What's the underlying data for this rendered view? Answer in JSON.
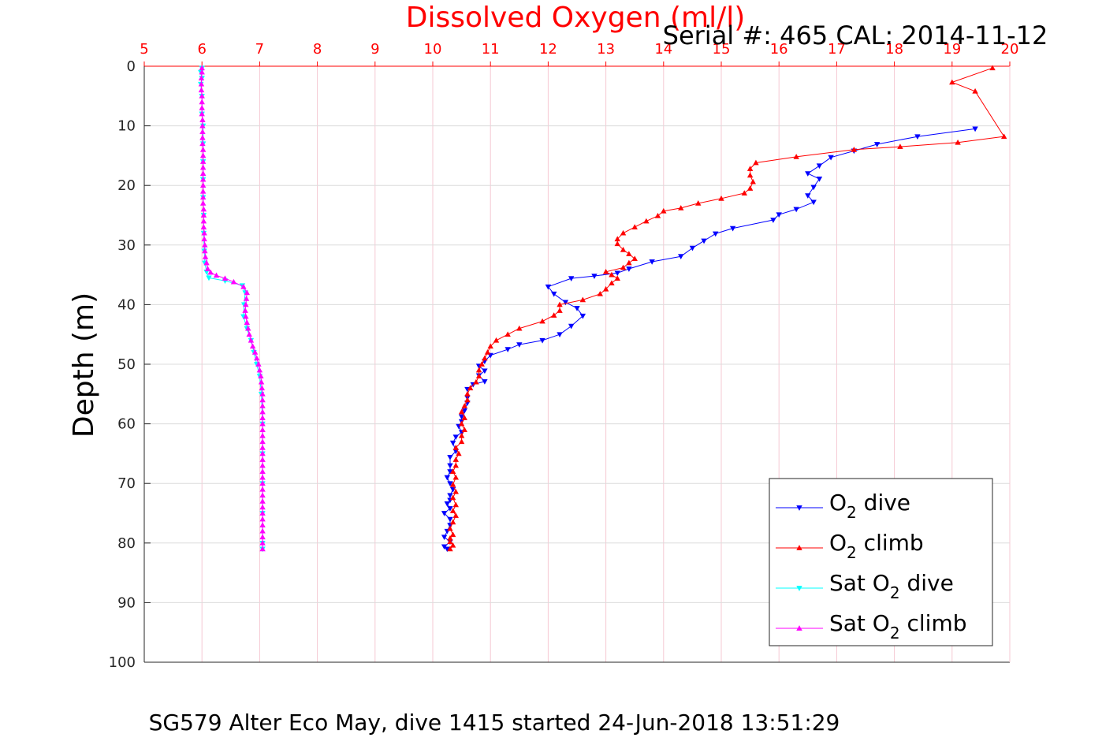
{
  "chart_data": {
    "type": "line",
    "title": "Dissolved Oxygen (ml/l)",
    "title_color": "#ff0000",
    "subtitle": "Serial #: 465  CAL: 2014-11-12",
    "xlabel": "",
    "ylabel": "Depth (m)",
    "caption": "SG579 Alter Eco May, dive 1415 started 24-Jun-2018 13:51:29",
    "xlim": [
      5,
      20
    ],
    "ylim": [
      0,
      100
    ],
    "y_reversed": true,
    "x_axis_position": "top",
    "x_tick_color": "#ff0000",
    "grid": true,
    "legend_position": "bottom-right",
    "xticks": [
      "5",
      "6",
      "7",
      "8",
      "9",
      "10",
      "11",
      "12",
      "13",
      "14",
      "15",
      "16",
      "17",
      "18",
      "19",
      "20"
    ],
    "yticks": [
      "0",
      "10",
      "20",
      "30",
      "40",
      "50",
      "60",
      "70",
      "80",
      "90",
      "100"
    ],
    "series": [
      {
        "name": "dive",
        "legend_pre": "O",
        "legend_sub": "2",
        "legend_post": " dive",
        "color": "#0000ff",
        "marker": "triangle-down",
        "points": [
          [
            19.4,
            10.5
          ],
          [
            18.4,
            11.8
          ],
          [
            17.7,
            13.1
          ],
          [
            17.3,
            14.2
          ],
          [
            16.9,
            15.3
          ],
          [
            16.7,
            16.7
          ],
          [
            16.5,
            18.0
          ],
          [
            16.7,
            18.9
          ],
          [
            16.6,
            20.3
          ],
          [
            16.5,
            21.7
          ],
          [
            16.6,
            22.8
          ],
          [
            16.3,
            24.0
          ],
          [
            16.0,
            24.9
          ],
          [
            15.9,
            25.8
          ],
          [
            15.2,
            27.2
          ],
          [
            14.9,
            28.1
          ],
          [
            14.7,
            29.3
          ],
          [
            14.5,
            30.5
          ],
          [
            14.3,
            31.9
          ],
          [
            13.8,
            32.8
          ],
          [
            13.4,
            34.0
          ],
          [
            13.2,
            34.7
          ],
          [
            12.8,
            35.2
          ],
          [
            12.4,
            35.6
          ],
          [
            12.0,
            37.0
          ],
          [
            12.1,
            38.2
          ],
          [
            12.3,
            39.6
          ],
          [
            12.5,
            40.6
          ],
          [
            12.6,
            41.9
          ],
          [
            12.4,
            43.6
          ],
          [
            12.2,
            45.0
          ],
          [
            11.9,
            46.0
          ],
          [
            11.5,
            46.7
          ],
          [
            11.3,
            47.5
          ],
          [
            11.0,
            48.5
          ],
          [
            10.9,
            49.5
          ],
          [
            10.8,
            50.3
          ],
          [
            10.9,
            51.1
          ],
          [
            10.8,
            51.9
          ],
          [
            10.9,
            52.9
          ],
          [
            10.7,
            53.4
          ],
          [
            10.6,
            54.2
          ],
          [
            10.6,
            55.6
          ],
          [
            10.6,
            56.5
          ],
          [
            10.55,
            57.8
          ],
          [
            10.5,
            58.8
          ],
          [
            10.5,
            59.6
          ],
          [
            10.45,
            60.4
          ],
          [
            10.5,
            61.4
          ],
          [
            10.4,
            62.2
          ],
          [
            10.35,
            63.2
          ],
          [
            10.4,
            64.6
          ],
          [
            10.3,
            65.6
          ],
          [
            10.3,
            67.0
          ],
          [
            10.3,
            68.0
          ],
          [
            10.25,
            69.0
          ],
          [
            10.3,
            70.0
          ],
          [
            10.35,
            71.0
          ],
          [
            10.3,
            72.0
          ],
          [
            10.3,
            72.8
          ],
          [
            10.25,
            73.4
          ],
          [
            10.3,
            74.2
          ],
          [
            10.2,
            75.0
          ],
          [
            10.3,
            76.0
          ],
          [
            10.3,
            77.0
          ],
          [
            10.25,
            78.0
          ],
          [
            10.2,
            79.0
          ],
          [
            10.3,
            79.8
          ],
          [
            10.2,
            80.6
          ],
          [
            10.25,
            81.0
          ]
        ]
      },
      {
        "name": "climb",
        "legend_pre": "O",
        "legend_sub": "2",
        "legend_post": " climb",
        "color": "#ff0000",
        "marker": "triangle-up",
        "points": [
          [
            10.3,
            81.0
          ],
          [
            10.35,
            80.4
          ],
          [
            10.3,
            79.8
          ],
          [
            10.3,
            79.2
          ],
          [
            10.35,
            78.6
          ],
          [
            10.3,
            77.6
          ],
          [
            10.35,
            76.5
          ],
          [
            10.4,
            75.4
          ],
          [
            10.35,
            74.6
          ],
          [
            10.4,
            73.6
          ],
          [
            10.35,
            72.4
          ],
          [
            10.4,
            71.4
          ],
          [
            10.35,
            70.2
          ],
          [
            10.4,
            69.0
          ],
          [
            10.35,
            68.0
          ],
          [
            10.4,
            67.0
          ],
          [
            10.4,
            66.0
          ],
          [
            10.45,
            65.0
          ],
          [
            10.4,
            64.0
          ],
          [
            10.5,
            63.0
          ],
          [
            10.5,
            62.0
          ],
          [
            10.55,
            61.0
          ],
          [
            10.5,
            60.0
          ],
          [
            10.55,
            59.0
          ],
          [
            10.5,
            58.0
          ],
          [
            10.55,
            57.0
          ],
          [
            10.6,
            56.0
          ],
          [
            10.6,
            55.0
          ],
          [
            10.65,
            54.0
          ],
          [
            10.75,
            53.0
          ],
          [
            10.8,
            52.0
          ],
          [
            10.8,
            51.0
          ],
          [
            10.85,
            50.0
          ],
          [
            10.9,
            49.0
          ],
          [
            10.95,
            48.0
          ],
          [
            11.0,
            47.0
          ],
          [
            11.1,
            46.0
          ],
          [
            11.3,
            45.0
          ],
          [
            11.5,
            44.0
          ],
          [
            11.9,
            42.8
          ],
          [
            12.1,
            41.8
          ],
          [
            12.2,
            41.0
          ],
          [
            12.2,
            40.0
          ],
          [
            12.6,
            39.2
          ],
          [
            12.9,
            38.2
          ],
          [
            13.0,
            37.4
          ],
          [
            13.1,
            36.4
          ],
          [
            13.2,
            35.6
          ],
          [
            13.1,
            35.0
          ],
          [
            13.0,
            34.5
          ],
          [
            13.3,
            33.8
          ],
          [
            13.4,
            33.0
          ],
          [
            13.5,
            32.3
          ],
          [
            13.4,
            31.5
          ],
          [
            13.3,
            30.8
          ],
          [
            13.2,
            29.8
          ],
          [
            13.2,
            29.0
          ],
          [
            13.3,
            28.0
          ],
          [
            13.5,
            27.0
          ],
          [
            13.7,
            26.0
          ],
          [
            13.9,
            25.1
          ],
          [
            14.0,
            24.3
          ],
          [
            14.3,
            23.8
          ],
          [
            14.6,
            23.0
          ],
          [
            15.0,
            22.2
          ],
          [
            15.4,
            21.3
          ],
          [
            15.5,
            20.5
          ],
          [
            15.55,
            19.4
          ],
          [
            15.5,
            18.3
          ],
          [
            15.5,
            17.2
          ],
          [
            15.6,
            16.2
          ],
          [
            16.3,
            15.2
          ],
          [
            17.3,
            14.0
          ],
          [
            18.1,
            13.5
          ],
          [
            19.1,
            12.8
          ],
          [
            19.9,
            11.8
          ],
          [
            19.4,
            4.2
          ],
          [
            19.0,
            2.7
          ],
          [
            19.7,
            0.3
          ]
        ]
      },
      {
        "name": "sat-dive",
        "legend_pre": "Sat O",
        "legend_sub": "2",
        "legend_post": " dive",
        "color": "#00ffff",
        "marker": "triangle-down",
        "points": [
          [
            6.0,
            0.3
          ],
          [
            5.98,
            1.0
          ],
          [
            6.0,
            2.0
          ],
          [
            5.98,
            3.0
          ],
          [
            6.0,
            5.0
          ],
          [
            6.0,
            8.0
          ],
          [
            6.02,
            10.0
          ],
          [
            6.02,
            13.0
          ],
          [
            6.02,
            16.0
          ],
          [
            6.02,
            19.0
          ],
          [
            6.02,
            22.0
          ],
          [
            6.03,
            25.0
          ],
          [
            6.03,
            28.0
          ],
          [
            6.04,
            31.0
          ],
          [
            6.05,
            33.0
          ],
          [
            6.08,
            34.5
          ],
          [
            6.12,
            35.5
          ],
          [
            6.4,
            36.0
          ],
          [
            6.7,
            36.8
          ],
          [
            6.75,
            38.0
          ],
          [
            6.73,
            40.0
          ],
          [
            6.72,
            42.0
          ],
          [
            6.78,
            44.0
          ],
          [
            6.85,
            46.0
          ],
          [
            6.9,
            48.0
          ],
          [
            6.95,
            50.0
          ],
          [
            7.0,
            52.0
          ],
          [
            7.03,
            55.0
          ],
          [
            7.05,
            60.0
          ],
          [
            7.05,
            65.0
          ],
          [
            7.05,
            70.0
          ],
          [
            7.05,
            75.0
          ],
          [
            7.05,
            80.0
          ],
          [
            7.05,
            81.0
          ]
        ]
      },
      {
        "name": "sat-climb",
        "legend_pre": "Sat O",
        "legend_sub": "2",
        "legend_post": " climb",
        "color": "#ff00ff",
        "marker": "triangle-up",
        "points": [
          [
            7.05,
            81.0
          ],
          [
            7.05,
            80.0
          ],
          [
            7.05,
            79.0
          ],
          [
            7.05,
            78.0
          ],
          [
            7.05,
            77.0
          ],
          [
            7.05,
            76.0
          ],
          [
            7.05,
            75.0
          ],
          [
            7.05,
            74.0
          ],
          [
            7.05,
            73.0
          ],
          [
            7.05,
            72.0
          ],
          [
            7.05,
            71.0
          ],
          [
            7.05,
            70.0
          ],
          [
            7.05,
            69.0
          ],
          [
            7.05,
            68.0
          ],
          [
            7.05,
            67.0
          ],
          [
            7.05,
            66.0
          ],
          [
            7.05,
            65.0
          ],
          [
            7.05,
            64.0
          ],
          [
            7.05,
            63.0
          ],
          [
            7.05,
            62.0
          ],
          [
            7.05,
            61.0
          ],
          [
            7.05,
            60.0
          ],
          [
            7.05,
            59.0
          ],
          [
            7.05,
            58.0
          ],
          [
            7.05,
            57.0
          ],
          [
            7.05,
            56.0
          ],
          [
            7.05,
            55.0
          ],
          [
            7.04,
            54.0
          ],
          [
            7.03,
            53.0
          ],
          [
            7.02,
            52.0
          ],
          [
            7.0,
            51.0
          ],
          [
            6.98,
            50.0
          ],
          [
            6.95,
            49.0
          ],
          [
            6.92,
            48.0
          ],
          [
            6.88,
            47.0
          ],
          [
            6.85,
            46.0
          ],
          [
            6.82,
            45.0
          ],
          [
            6.8,
            44.0
          ],
          [
            6.78,
            43.0
          ],
          [
            6.76,
            42.0
          ],
          [
            6.75,
            41.0
          ],
          [
            6.76,
            40.0
          ],
          [
            6.77,
            39.0
          ],
          [
            6.78,
            38.0
          ],
          [
            6.72,
            37.0
          ],
          [
            6.55,
            36.2
          ],
          [
            6.4,
            35.6
          ],
          [
            6.25,
            35.1
          ],
          [
            6.15,
            34.6
          ],
          [
            6.1,
            34.0
          ],
          [
            6.08,
            33.0
          ],
          [
            6.06,
            32.0
          ],
          [
            6.05,
            31.0
          ],
          [
            6.05,
            30.0
          ],
          [
            6.04,
            29.0
          ],
          [
            6.04,
            28.0
          ],
          [
            6.03,
            27.0
          ],
          [
            6.03,
            26.0
          ],
          [
            6.03,
            25.0
          ],
          [
            6.03,
            24.0
          ],
          [
            6.02,
            23.0
          ],
          [
            6.02,
            22.0
          ],
          [
            6.02,
            21.0
          ],
          [
            6.02,
            20.0
          ],
          [
            6.02,
            19.0
          ],
          [
            6.02,
            18.0
          ],
          [
            6.02,
            17.0
          ],
          [
            6.02,
            16.0
          ],
          [
            6.02,
            15.0
          ],
          [
            6.02,
            14.0
          ],
          [
            6.01,
            13.0
          ],
          [
            6.01,
            12.0
          ],
          [
            6.01,
            11.0
          ],
          [
            6.01,
            10.0
          ],
          [
            6.01,
            9.0
          ],
          [
            6.0,
            8.0
          ],
          [
            6.0,
            7.0
          ],
          [
            6.0,
            6.0
          ],
          [
            6.0,
            5.0
          ],
          [
            5.99,
            4.0
          ],
          [
            5.99,
            3.0
          ],
          [
            5.99,
            2.0
          ],
          [
            6.0,
            1.0
          ],
          [
            6.0,
            0.3
          ]
        ]
      }
    ]
  }
}
